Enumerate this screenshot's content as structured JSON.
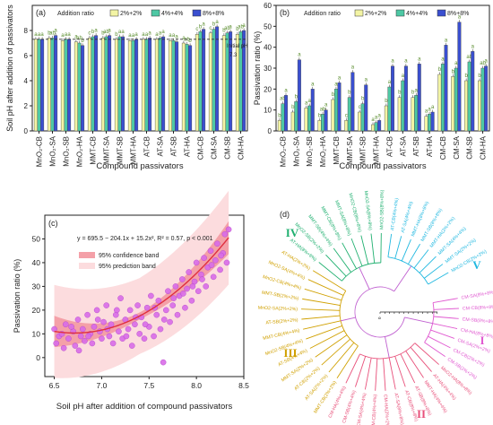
{
  "colors": {
    "c1": "#f3f4a4",
    "c2": "#4ec8a4",
    "c3": "#3a4fd0",
    "hA": "#5a8d2e",
    "hB": "#5a8d2e",
    "scatter": "#d86be8",
    "fit": "#e02f3f",
    "conf": "#f4a0a8",
    "pred": "#fcdcde",
    "cI": "#e058d0",
    "cII": "#e8507a",
    "cIII": "#d0a000",
    "cIV": "#20b070",
    "cV": "#20b8e0"
  },
  "panel_a": {
    "label": "(a)",
    "legend_title": "Addition ratio",
    "legend": [
      "2%+2%",
      "4%+4%",
      "8%+8%"
    ],
    "ylabel": "Soil pH after addition of passivators",
    "xlabel": "Compound passivators",
    "annotation": "Initial pH",
    "annotation_value": "7.3"
  },
  "panel_b": {
    "label": "(b)",
    "legend_title": "Addition ratio",
    "legend": [
      "2%+2%",
      "4%+4%",
      "8%+8%"
    ],
    "ylabel": "Passivation ratio (%)",
    "xlabel": "Compound passivators"
  },
  "panel_c": {
    "label": "(c)",
    "equation": "y = 695.5 − 204.1x + 15.2x², R² = 0.57, p < 0.001",
    "legend": [
      "95% confidence band",
      "95% prediction band"
    ],
    "ylabel": "Passivation ratio (%)",
    "xlabel": "Soil pH after addition of compound passivators"
  },
  "panel_d": {
    "label": "(d)",
    "groups": [
      "I",
      "II",
      "III",
      "IV",
      "V"
    ],
    "axis_tick": "0",
    "tips": [
      {
        "g": "I",
        "t": "CM-SA(8%+8%)"
      },
      {
        "g": "I",
        "t": "CM-CB(8%+8%)"
      },
      {
        "g": "I",
        "t": "CM-SB(8%+8%)"
      },
      {
        "g": "I",
        "t": "CM-HA(8%+8%)"
      },
      {
        "g": "I",
        "t": "CM-SA(2%+2%)"
      },
      {
        "g": "I",
        "t": "CM-CB(2%+2%)"
      },
      {
        "g": "I",
        "t": "CM-SB(2%+2%)"
      },
      {
        "g": "II",
        "t": "MnO2-HA(8%+8%)"
      },
      {
        "g": "II",
        "t": "AT-HA(4%+4%)"
      },
      {
        "g": "II",
        "t": "MMT-HA(4%+4%)"
      },
      {
        "g": "II",
        "t": "AT-SB(8%+8%)"
      },
      {
        "g": "II",
        "t": "AT-CB(8%+8%)"
      },
      {
        "g": "II",
        "t": "AT-SA(8%+8%)"
      },
      {
        "g": "II",
        "t": "CM-HA(2%+2%)"
      },
      {
        "g": "II",
        "t": "CM-CB(4%+4%)"
      },
      {
        "g": "II",
        "t": "CM-SA(4%+4%)"
      },
      {
        "g": "II",
        "t": "CM-SB(4%+4%)"
      },
      {
        "g": "II",
        "t": "CM-HA(4%+4%)"
      },
      {
        "g": "III",
        "t": "MMT-CB(2%+2%)"
      },
      {
        "g": "III",
        "t": "AT-SA(2%+2%)"
      },
      {
        "g": "III",
        "t": "AT-CB(2%+2%)"
      },
      {
        "g": "III",
        "t": "MMT-SA(2%+2%)"
      },
      {
        "g": "III",
        "t": "AT-SB(4%+4%)"
      },
      {
        "g": "III",
        "t": "MnO2-SB(4%+4%)"
      },
      {
        "g": "III",
        "t": "MMT-CB(4%+4%)"
      },
      {
        "g": "III",
        "t": "AT-SB(2%+2%)"
      },
      {
        "g": "III",
        "t": "MnO2-SA(2%+2%)"
      },
      {
        "g": "III",
        "t": "MMT-SB(2%+2%)"
      },
      {
        "g": "III",
        "t": "MnO2-CB(4%+4%)"
      },
      {
        "g": "III",
        "t": "MnO2-SA(4%+4%)"
      },
      {
        "g": "III",
        "t": "AT-HA(2%+2%)"
      },
      {
        "g": "IV",
        "t": "AT-HA(8%+8%)"
      },
      {
        "g": "IV",
        "t": "MnO2-SB(2%+2%)"
      },
      {
        "g": "IV",
        "t": "MMT-SB(4%+4%)"
      },
      {
        "g": "IV",
        "t": "MMT-CB(8%+8%)"
      },
      {
        "g": "IV",
        "t": "MMT-SA(8%+8%)"
      },
      {
        "g": "IV",
        "t": "MnO2-CB(8%+8%)"
      },
      {
        "g": "IV",
        "t": "MnO2-SA(8%+8%)"
      },
      {
        "g": "IV",
        "t": "MnO2-SB(8%+8%)"
      },
      {
        "g": "V",
        "t": "AT-CB(4%+4%)"
      },
      {
        "g": "V",
        "t": "AT-SA(4%+4%)"
      },
      {
        "g": "V",
        "t": "MMT-HA(8%+8%)"
      },
      {
        "g": "V",
        "t": "MMT-SB(8%+8%)"
      },
      {
        "g": "V",
        "t": "MMT-HA(2%+2%)"
      },
      {
        "g": "V",
        "t": "MMT-SA(4%+4%)"
      },
      {
        "g": "V",
        "t": "MMT-SA(2%+2%)"
      },
      {
        "g": "V",
        "t": "MnO2-CB(2%+2%)"
      }
    ]
  },
  "chart_data": [
    {
      "type": "bar",
      "title": "",
      "xlabel": "Compound passivators",
      "ylabel": "Soil pH after addition of passivators",
      "ylim": [
        0,
        10
      ],
      "categories": [
        "MnO₂-CB",
        "MnO₂-SA",
        "MnO₂-SB",
        "MnO₂-HA",
        "MMT-CB",
        "MMT-SA",
        "MMT-SB",
        "MMT-HA",
        "AT-CB",
        "AT-SA",
        "AT-SB",
        "AT-HA",
        "CM-CB",
        "CM-SA",
        "CM-SB",
        "CM-HA"
      ],
      "series": [
        {
          "name": "2%+2%",
          "values": [
            7.3,
            7.4,
            7.2,
            7.1,
            7.4,
            7.4,
            7.3,
            7.2,
            7.3,
            7.3,
            7.2,
            7.0,
            7.7,
            7.8,
            7.6,
            7.7
          ]
        },
        {
          "name": "4%+4%",
          "values": [
            7.3,
            7.4,
            7.3,
            7.0,
            7.5,
            7.5,
            7.5,
            7.2,
            7.3,
            7.4,
            7.2,
            6.9,
            7.9,
            8.1,
            7.8,
            7.9
          ]
        },
        {
          "name": "8%+8%",
          "values": [
            7.3,
            7.6,
            7.3,
            6.8,
            7.6,
            7.6,
            7.5,
            7.3,
            7.4,
            7.5,
            7.1,
            6.8,
            8.1,
            8.3,
            7.9,
            8.0
          ]
        }
      ],
      "letters": [
        [
          "a",
          "a",
          "a"
        ],
        [
          "b",
          "ab",
          "a"
        ],
        [
          "a",
          "a",
          "a"
        ],
        [
          "a",
          "ab",
          "b"
        ],
        [
          "c",
          "b",
          "a"
        ],
        [
          "b",
          "ab",
          "a"
        ],
        [
          "b",
          "a",
          "a"
        ],
        [
          "a",
          "a",
          "a"
        ],
        [
          "a",
          "a",
          "a"
        ],
        [
          "a",
          "a",
          "a"
        ],
        [
          "a",
          "a",
          "a"
        ],
        [
          "a",
          "ab",
          "b"
        ],
        [
          "c",
          "b",
          "a"
        ],
        [
          "c",
          "b",
          "a"
        ],
        [
          "b",
          "ab",
          "a"
        ],
        [
          "b",
          "ab",
          "a"
        ]
      ],
      "reference_line": 7.3,
      "grid": false,
      "legend": "top-inside"
    },
    {
      "type": "bar",
      "title": "",
      "xlabel": "Compound passivators",
      "ylabel": "Passivation ratio (%)",
      "ylim": [
        0,
        60
      ],
      "categories": [
        "MnO₂-CB",
        "MnO₂-SA",
        "MnO₂-SB",
        "MnO₂-HA",
        "MMT-CB",
        "MMT-SA",
        "MMT-SB",
        "MMT-HA",
        "AT-CB",
        "AT-SA",
        "AT-SB",
        "AT-HA",
        "CM-CB",
        "CM-SA",
        "CM-SB",
        "CM-HA"
      ],
      "series": [
        {
          "name": "2%+2%",
          "values": [
            5,
            9,
            11,
            5,
            15,
            5,
            9,
            3,
            12,
            16,
            16,
            7,
            27,
            26,
            24,
            24
          ]
        },
        {
          "name": "4%+4%",
          "values": [
            13,
            14,
            12,
            8,
            20,
            16,
            13,
            4,
            21,
            24,
            17,
            8,
            32,
            30,
            33,
            30
          ]
        },
        {
          "name": "8%+8%",
          "values": [
            17,
            34,
            20,
            10,
            23,
            28,
            22,
            5,
            31,
            31,
            32,
            9,
            41,
            52,
            38,
            31
          ]
        }
      ],
      "letters": [
        [
          "b",
          "ab",
          "a"
        ],
        [
          "b",
          "b",
          "a"
        ],
        [
          "a",
          "a",
          "a"
        ],
        [
          "b",
          "ab",
          "a"
        ],
        [
          "b",
          "a",
          "a"
        ],
        [
          "c",
          "b",
          "a"
        ],
        [
          "c",
          "b",
          "a"
        ],
        [
          "a",
          "a",
          "a"
        ],
        [
          "b",
          "a",
          "a"
        ],
        [
          "b",
          "a",
          "a"
        ],
        [
          "b",
          "a",
          "a"
        ],
        [
          "a",
          "a",
          "a"
        ],
        [
          "b",
          "a",
          "a"
        ],
        [
          "b",
          "a",
          "a"
        ],
        [
          "b",
          "ab",
          "a"
        ],
        [
          "b",
          "ab",
          "a"
        ]
      ],
      "grid": false,
      "legend": "top-inside"
    },
    {
      "type": "scatter",
      "title": "",
      "xlabel": "Soil pH after addition of compound passivators",
      "ylabel": "Passivation ratio (%)",
      "xlim": [
        6.4,
        8.5
      ],
      "ylim": [
        -8,
        60
      ],
      "xticks": [
        6.5,
        7.0,
        7.5,
        8.0,
        8.5
      ],
      "yticks": [
        0,
        10,
        20,
        30,
        40,
        50
      ],
      "fit": {
        "a": 695.5,
        "b": -204.1,
        "c": 15.2,
        "r2": 0.57,
        "p": "< 0.001"
      },
      "points": [
        [
          6.5,
          12
        ],
        [
          6.52,
          6
        ],
        [
          6.55,
          9
        ],
        [
          6.6,
          4
        ],
        [
          6.62,
          14
        ],
        [
          6.65,
          8
        ],
        [
          6.7,
          11
        ],
        [
          6.72,
          5
        ],
        [
          6.75,
          16
        ],
        [
          6.78,
          9
        ],
        [
          6.8,
          12
        ],
        [
          6.82,
          7
        ],
        [
          6.85,
          18
        ],
        [
          6.88,
          10
        ],
        [
          6.9,
          6
        ],
        [
          6.92,
          13
        ],
        [
          6.95,
          20
        ],
        [
          6.98,
          11
        ],
        [
          7.0,
          8
        ],
        [
          7.02,
          15
        ],
        [
          7.05,
          22
        ],
        [
          7.08,
          9
        ],
        [
          7.1,
          14
        ],
        [
          7.12,
          6
        ],
        [
          7.15,
          18
        ],
        [
          7.18,
          11
        ],
        [
          7.2,
          25
        ],
        [
          7.22,
          8
        ],
        [
          7.25,
          16
        ],
        [
          7.28,
          12
        ],
        [
          7.3,
          20
        ],
        [
          7.32,
          5
        ],
        [
          7.35,
          14
        ],
        [
          7.38,
          22
        ],
        [
          7.4,
          10
        ],
        [
          7.42,
          17
        ],
        [
          7.45,
          8
        ],
        [
          7.48,
          21
        ],
        [
          7.5,
          13
        ],
        [
          7.52,
          26
        ],
        [
          7.55,
          9
        ],
        [
          7.58,
          18
        ],
        [
          7.6,
          24
        ],
        [
          7.62,
          12
        ],
        [
          7.65,
          -2
        ],
        [
          7.68,
          20
        ],
        [
          7.7,
          28
        ],
        [
          7.72,
          15
        ],
        [
          7.75,
          22
        ],
        [
          7.78,
          30
        ],
        [
          7.8,
          18
        ],
        [
          7.82,
          26
        ],
        [
          7.85,
          33
        ],
        [
          7.88,
          21
        ],
        [
          7.9,
          29
        ],
        [
          7.92,
          36
        ],
        [
          7.95,
          24
        ],
        [
          7.98,
          32
        ],
        [
          8.0,
          40
        ],
        [
          8.02,
          28
        ],
        [
          8.05,
          35
        ],
        [
          8.08,
          42
        ],
        [
          8.1,
          30
        ],
        [
          8.12,
          38
        ],
        [
          8.15,
          45
        ],
        [
          8.18,
          34
        ],
        [
          8.2,
          41
        ],
        [
          8.22,
          48
        ],
        [
          8.25,
          37
        ],
        [
          8.28,
          44
        ],
        [
          8.3,
          52
        ],
        [
          8.32,
          40
        ],
        [
          6.58,
          10
        ],
        [
          6.68,
          13
        ],
        [
          6.76,
          3
        ],
        [
          6.86,
          9
        ],
        [
          6.96,
          16
        ],
        [
          7.06,
          12
        ],
        [
          7.16,
          20
        ],
        [
          7.26,
          9
        ],
        [
          7.36,
          17
        ],
        [
          7.46,
          14
        ],
        [
          7.56,
          21
        ],
        [
          7.66,
          16
        ],
        [
          7.76,
          25
        ],
        [
          7.86,
          27
        ],
        [
          7.96,
          30
        ],
        [
          8.06,
          33
        ],
        [
          8.16,
          39
        ],
        [
          8.26,
          43
        ],
        [
          8.34,
          54
        ]
      ],
      "legend": "top-left"
    }
  ]
}
